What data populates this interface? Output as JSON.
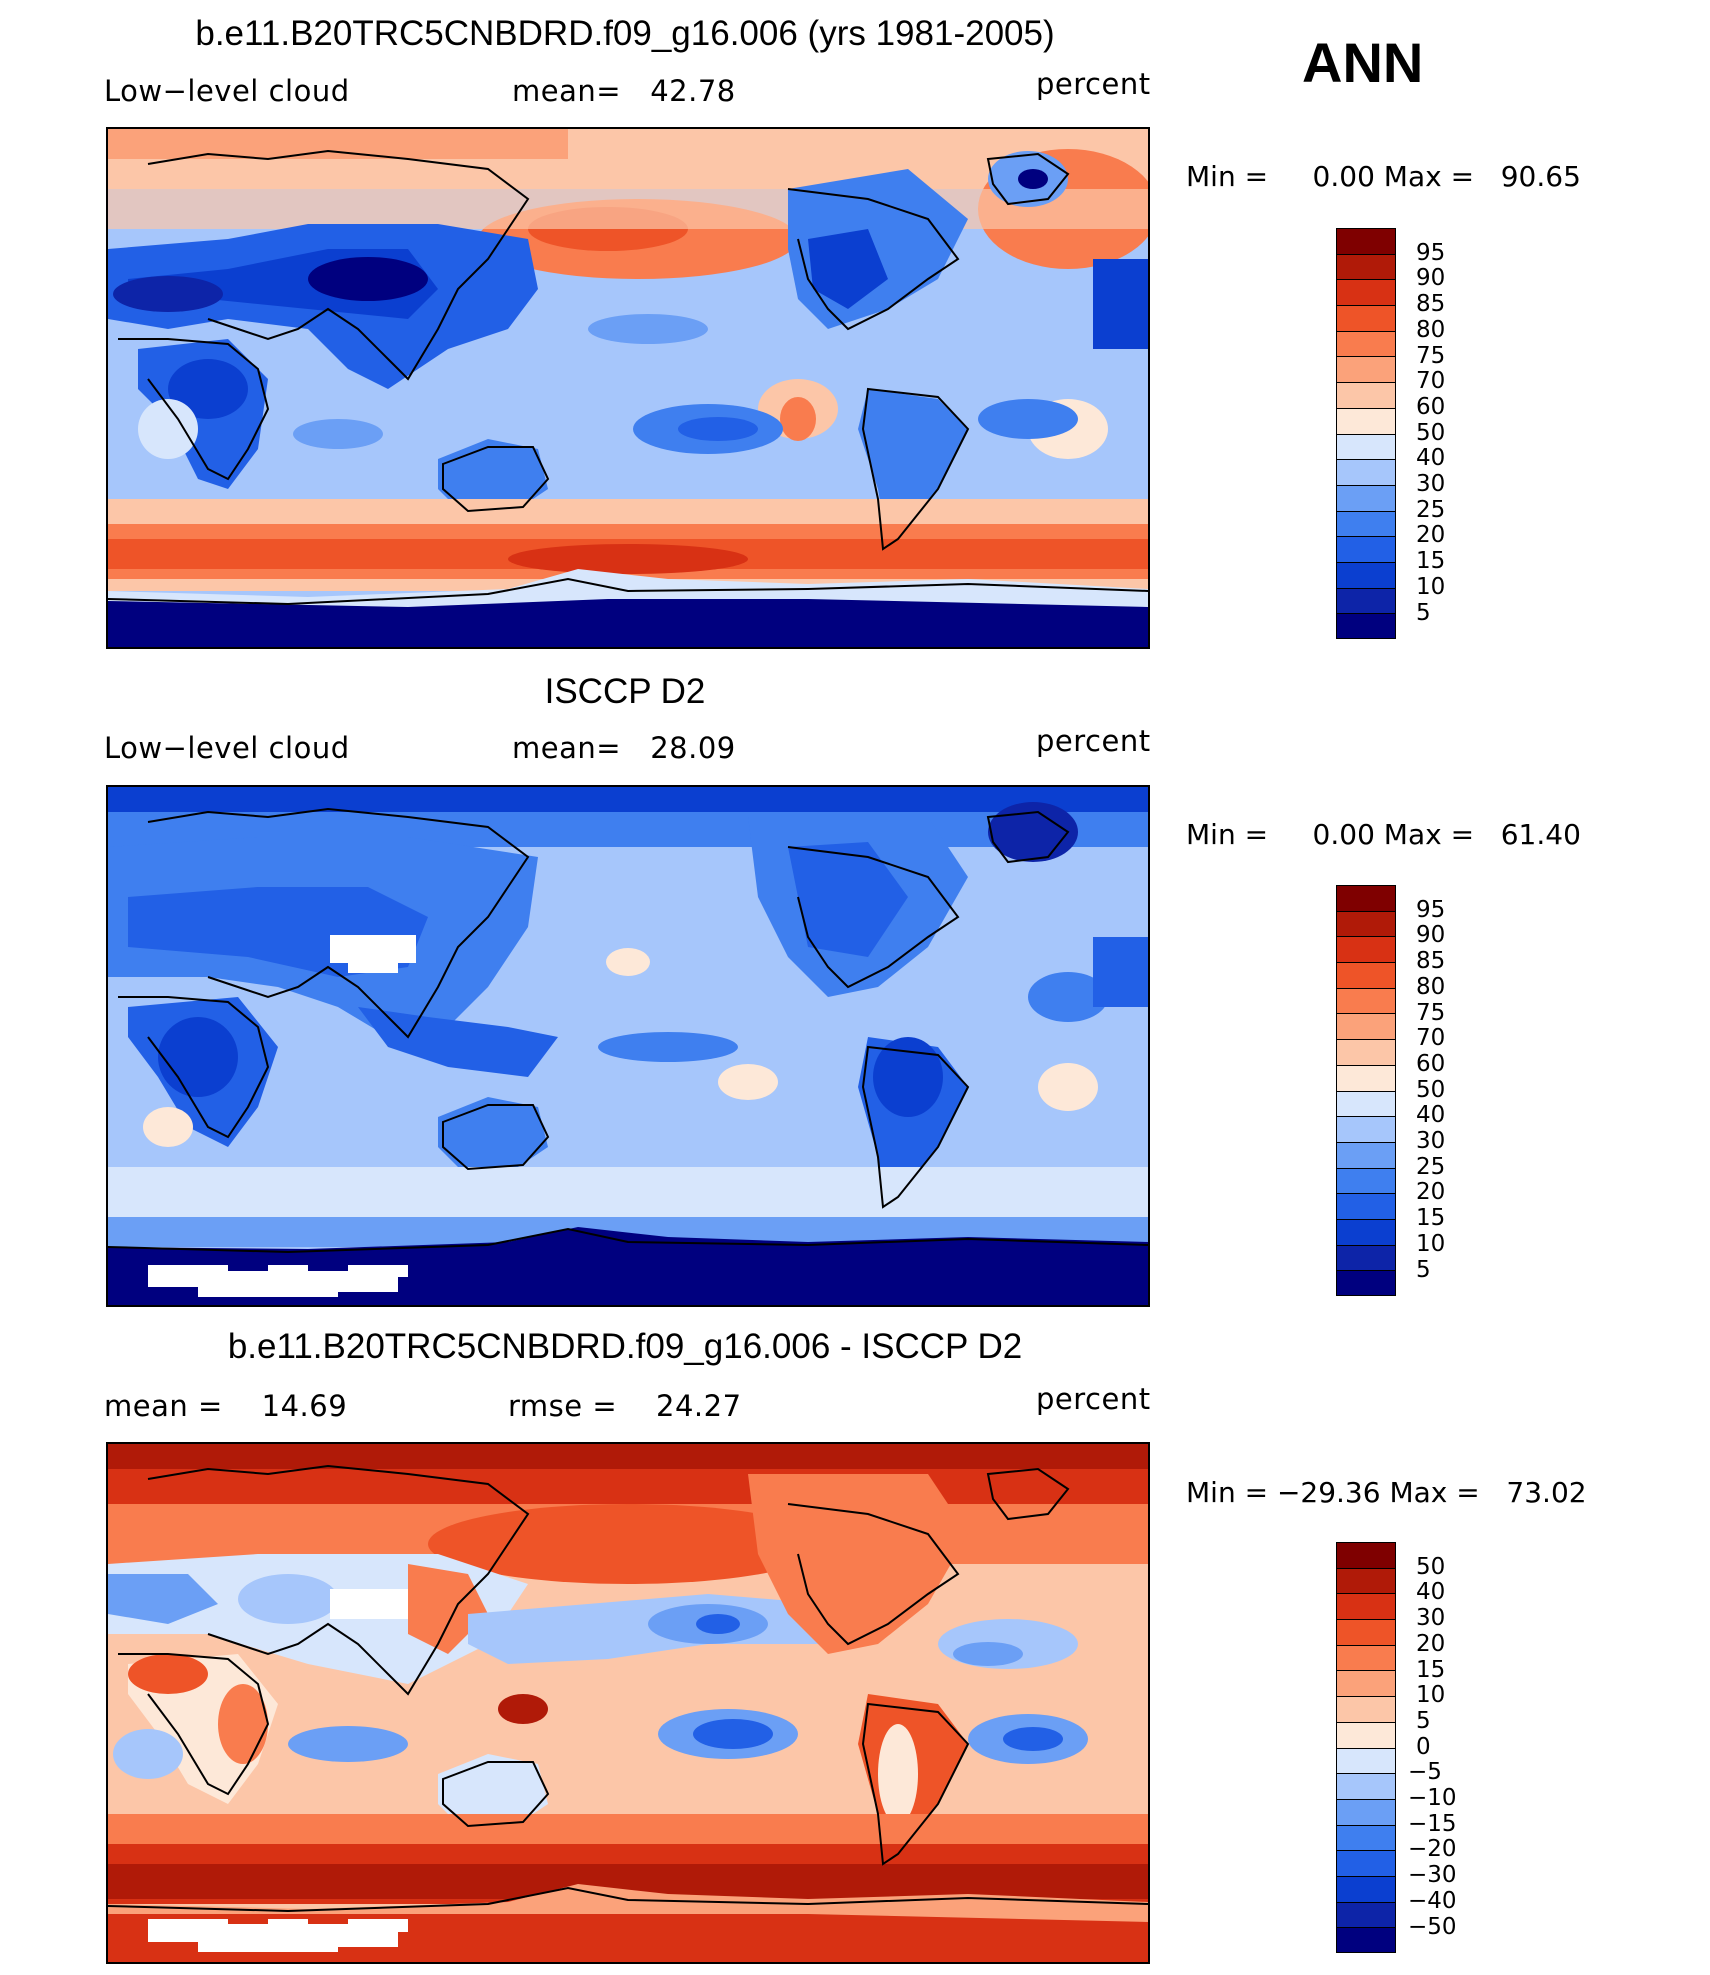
{
  "season": "ANN",
  "panels": [
    {
      "title": "b.e11.B20TRC5CNBDRD.f09_g16.006 (yrs 1981-2005)",
      "left_label": "Low−level cloud",
      "center_label": "mean=   42.78",
      "right_label": "percent",
      "minmax": "Min =     0.00 Max =   90.65",
      "colorbar_labels": [
        "95",
        "90",
        "85",
        "80",
        "75",
        "70",
        "60",
        "50",
        "40",
        "30",
        "25",
        "20",
        "15",
        "10",
        "5"
      ]
    },
    {
      "title": "ISCCP D2",
      "left_label": "Low−level cloud",
      "center_label": "mean=   28.09",
      "right_label": "percent",
      "minmax": "Min =     0.00 Max =   61.40",
      "colorbar_labels": [
        "95",
        "90",
        "85",
        "80",
        "75",
        "70",
        "60",
        "50",
        "40",
        "30",
        "25",
        "20",
        "15",
        "10",
        "5"
      ]
    },
    {
      "title": "b.e11.B20TRC5CNBDRD.f09_g16.006 - ISCCP D2",
      "left_label": "mean =    14.69",
      "center_label": "rmse =    24.27",
      "right_label": "percent",
      "minmax": "Min = −29.36 Max =   73.02",
      "colorbar_labels": [
        "50",
        "40",
        "30",
        "20",
        "15",
        "10",
        "5",
        "0",
        "−5",
        "−10",
        "−15",
        "−20",
        "−30",
        "−40",
        "−50"
      ]
    }
  ],
  "chart_data": [
    {
      "type": "heatmap",
      "title": "b.e11.B20TRC5CNBDRD.f09_g16.006 (yrs 1981-2005)",
      "variable": "Low−level cloud",
      "units": "percent",
      "mean": 42.78,
      "min": 0.0,
      "max": 90.65,
      "contour_levels": [
        5,
        10,
        15,
        20,
        25,
        30,
        40,
        50,
        60,
        70,
        75,
        80,
        85,
        90,
        95
      ],
      "colors": [
        "#00007f",
        "#0d24a8",
        "#0b3fd0",
        "#2260e6",
        "#3f7fef",
        "#6b9ff5",
        "#a6c6fb",
        "#d7e6fc",
        "#fde8d8",
        "#fcc6a8",
        "#fba27a",
        "#f97c4e",
        "#ee5428",
        "#d83114",
        "#b01a08",
        "#7f0000"
      ]
    },
    {
      "type": "heatmap",
      "title": "ISCCP D2",
      "variable": "Low−level cloud",
      "units": "percent",
      "mean": 28.09,
      "min": 0.0,
      "max": 61.4,
      "contour_levels": [
        5,
        10,
        15,
        20,
        25,
        30,
        40,
        50,
        60,
        70,
        75,
        80,
        85,
        90,
        95
      ],
      "colors": [
        "#00007f",
        "#0d24a8",
        "#0b3fd0",
        "#2260e6",
        "#3f7fef",
        "#6b9ff5",
        "#a6c6fb",
        "#d7e6fc",
        "#fde8d8",
        "#fcc6a8",
        "#fba27a",
        "#f97c4e",
        "#ee5428",
        "#d83114",
        "#b01a08",
        "#7f0000"
      ]
    },
    {
      "type": "heatmap",
      "title": "b.e11.B20TRC5CNBDRD.f09_g16.006 - ISCCP D2",
      "units": "percent",
      "mean": 14.69,
      "rmse": 24.27,
      "min": -29.36,
      "max": 73.02,
      "contour_levels": [
        -50,
        -40,
        -30,
        -20,
        -15,
        -10,
        -5,
        0,
        5,
        10,
        15,
        20,
        30,
        40,
        50
      ],
      "colors": [
        "#00007f",
        "#0d24a8",
        "#0b3fd0",
        "#2260e6",
        "#3f7fef",
        "#6b9ff5",
        "#a6c6fb",
        "#d7e6fc",
        "#fde8d8",
        "#fcc6a8",
        "#fba27a",
        "#f97c4e",
        "#ee5428",
        "#d83114",
        "#b01a08",
        "#7f0000"
      ]
    }
  ]
}
